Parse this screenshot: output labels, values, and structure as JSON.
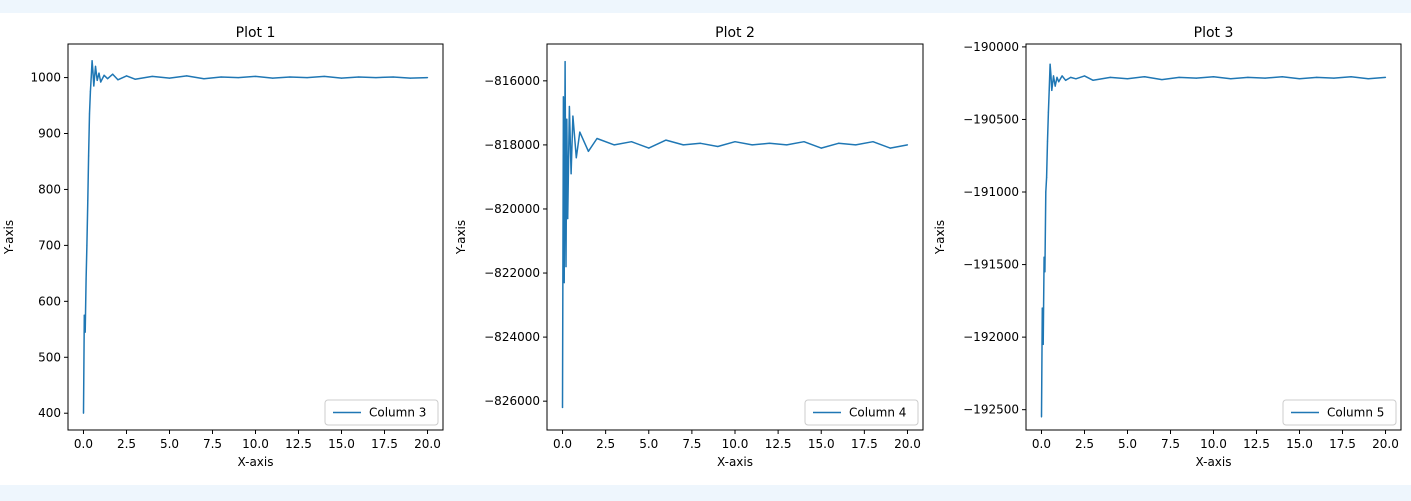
{
  "chart_data": [
    {
      "type": "line",
      "title": "Plot 1",
      "xlabel": "X-axis",
      "ylabel": "Y-axis",
      "xlim": [
        -0.9,
        20.9
      ],
      "ylim": [
        370,
        1060
      ],
      "xticks": [
        0,
        2.5,
        5,
        7.5,
        10,
        12.5,
        15,
        17.5,
        20
      ],
      "xtick_labels": [
        "0.0",
        "2.5",
        "5.0",
        "7.5",
        "10.0",
        "12.5",
        "15.0",
        "17.5",
        "20.0"
      ],
      "yticks": [
        400,
        500,
        600,
        700,
        800,
        900,
        1000
      ],
      "ytick_labels": [
        "400",
        "500",
        "600",
        "700",
        "800",
        "900",
        "1000"
      ],
      "legend_position": "lower-right",
      "grid": false,
      "series": [
        {
          "name": "Column 3",
          "color": "#1f77b4",
          "x": [
            0.0,
            0.05,
            0.1,
            0.15,
            0.2,
            0.25,
            0.3,
            0.35,
            0.4,
            0.45,
            0.5,
            0.55,
            0.6,
            0.7,
            0.8,
            0.9,
            1.0,
            1.2,
            1.4,
            1.7,
            2.0,
            2.5,
            3.0,
            4.0,
            5.0,
            6.0,
            7.0,
            8.0,
            9.0,
            10.0,
            11.0,
            12.0,
            13.0,
            14.0,
            15.0,
            16.0,
            17.0,
            18.0,
            19.0,
            20.0
          ],
          "y": [
            400,
            575,
            545,
            640,
            700,
            780,
            860,
            935,
            975,
            1000,
            1030,
            1012,
            985,
            1020,
            995,
            1008,
            992,
            1004,
            998,
            1006,
            996,
            1003,
            997,
            1002,
            999,
            1003,
            998,
            1001,
            1000,
            1002,
            999,
            1001,
            1000,
            1002,
            999,
            1001,
            1000,
            1001,
            999,
            1000
          ]
        }
      ]
    },
    {
      "type": "line",
      "title": "Plot 2",
      "xlabel": "X-axis",
      "ylabel": "Y-axis",
      "xlim": [
        -0.9,
        20.9
      ],
      "ylim": [
        -826900,
        -814850
      ],
      "xticks": [
        0,
        2.5,
        5,
        7.5,
        10,
        12.5,
        15,
        17.5,
        20
      ],
      "xtick_labels": [
        "0.0",
        "2.5",
        "5.0",
        "7.5",
        "10.0",
        "12.5",
        "15.0",
        "17.5",
        "20.0"
      ],
      "yticks": [
        -826000,
        -824000,
        -822000,
        -820000,
        -818000,
        -816000
      ],
      "ytick_labels": [
        "−826000",
        "−824000",
        "−822000",
        "−820000",
        "−818000",
        "−816000"
      ],
      "legend_position": "lower-right",
      "grid": false,
      "series": [
        {
          "name": "Column 4",
          "color": "#1f77b4",
          "x": [
            0.0,
            0.05,
            0.1,
            0.15,
            0.2,
            0.25,
            0.3,
            0.4,
            0.5,
            0.6,
            0.8,
            1.0,
            1.5,
            2.0,
            3.0,
            4.0,
            5.0,
            6.0,
            7.0,
            8.0,
            9.0,
            10.0,
            11.0,
            12.0,
            13.0,
            14.0,
            15.0,
            16.0,
            17.0,
            18.0,
            19.0,
            20.0
          ],
          "y": [
            -826200,
            -816500,
            -822300,
            -815400,
            -821800,
            -817200,
            -820300,
            -816800,
            -818900,
            -817100,
            -818400,
            -817600,
            -818200,
            -817800,
            -818000,
            -817900,
            -818100,
            -817850,
            -818000,
            -817950,
            -818050,
            -817900,
            -818000,
            -817950,
            -818000,
            -817900,
            -818100,
            -817950,
            -818000,
            -817900,
            -818100,
            -818000
          ]
        }
      ]
    },
    {
      "type": "line",
      "title": "Plot 3",
      "xlabel": "X-axis",
      "ylabel": "Y-axis",
      "xlim": [
        -0.9,
        20.9
      ],
      "ylim": [
        -192640,
        -189980
      ],
      "xticks": [
        0,
        2.5,
        5,
        7.5,
        10,
        12.5,
        15,
        17.5,
        20
      ],
      "xtick_labels": [
        "0.0",
        "2.5",
        "5.0",
        "7.5",
        "10.0",
        "12.5",
        "15.0",
        "17.5",
        "20.0"
      ],
      "yticks": [
        -192500,
        -192000,
        -191500,
        -191000,
        -190500,
        -190000
      ],
      "ytick_labels": [
        "−192500",
        "−192000",
        "−191500",
        "−191000",
        "−190500",
        "−190000"
      ],
      "legend_position": "lower-right",
      "grid": false,
      "series": [
        {
          "name": "Column 5",
          "color": "#1f77b4",
          "x": [
            0.0,
            0.05,
            0.1,
            0.15,
            0.2,
            0.25,
            0.3,
            0.35,
            0.4,
            0.45,
            0.5,
            0.55,
            0.6,
            0.7,
            0.8,
            0.9,
            1.0,
            1.2,
            1.4,
            1.7,
            2.0,
            2.5,
            3.0,
            4.0,
            5.0,
            6.0,
            7.0,
            8.0,
            9.0,
            10.0,
            11.0,
            12.0,
            13.0,
            14.0,
            15.0,
            16.0,
            17.0,
            18.0,
            19.0,
            20.0
          ],
          "y": [
            -192550,
            -191800,
            -192050,
            -191450,
            -191550,
            -191000,
            -190900,
            -190650,
            -190450,
            -190300,
            -190120,
            -190190,
            -190300,
            -190200,
            -190270,
            -190210,
            -190240,
            -190200,
            -190230,
            -190210,
            -190220,
            -190200,
            -190230,
            -190210,
            -190220,
            -190205,
            -190225,
            -190210,
            -190215,
            -190205,
            -190220,
            -190210,
            -190215,
            -190205,
            -190220,
            -190210,
            -190215,
            -190205,
            -190220,
            -190210
          ]
        }
      ]
    }
  ]
}
